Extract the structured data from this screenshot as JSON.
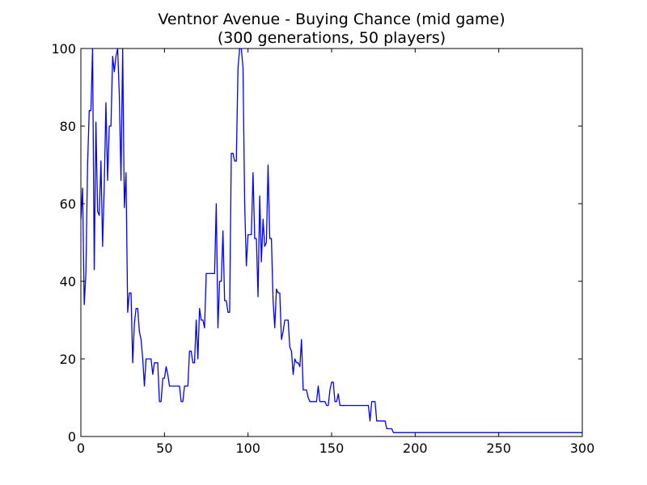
{
  "chart_data": {
    "type": "line",
    "title": "Ventnor Avenue - Buying Chance (mid game)",
    "subtitle": "(300 generations, 50 players)",
    "xlabel": "",
    "ylabel": "",
    "xlim": [
      0,
      300
    ],
    "ylim": [
      0,
      100
    ],
    "xticks": [
      0,
      50,
      100,
      150,
      200,
      250,
      300
    ],
    "yticks": [
      0,
      20,
      40,
      60,
      80,
      100
    ],
    "grid": false,
    "line_color": "#0000ff",
    "series": [
      {
        "points": [
          [
            0,
            56
          ],
          [
            1,
            64
          ],
          [
            2,
            34
          ],
          [
            3,
            42
          ],
          [
            4,
            70
          ],
          [
            5,
            84
          ],
          [
            6,
            84
          ],
          [
            7,
            100
          ],
          [
            8,
            43
          ],
          [
            9,
            81
          ],
          [
            10,
            58
          ],
          [
            11,
            57
          ],
          [
            12,
            71
          ],
          [
            13,
            49
          ],
          [
            14,
            65
          ],
          [
            15,
            86
          ],
          [
            16,
            66
          ],
          [
            17,
            80
          ],
          [
            18,
            80
          ],
          [
            19,
            98
          ],
          [
            20,
            94
          ],
          [
            21,
            98
          ],
          [
            22,
            100
          ],
          [
            23,
            88
          ],
          [
            24,
            66
          ],
          [
            25,
            100
          ],
          [
            26,
            59
          ],
          [
            27,
            68
          ],
          [
            28,
            32
          ],
          [
            29,
            37
          ],
          [
            30,
            37
          ],
          [
            31,
            19
          ],
          [
            32,
            29
          ],
          [
            33,
            33
          ],
          [
            34,
            33
          ],
          [
            35,
            27
          ],
          [
            36,
            25
          ],
          [
            37,
            20
          ],
          [
            38,
            13
          ],
          [
            39,
            20
          ],
          [
            40,
            20
          ],
          [
            41,
            20
          ],
          [
            42,
            20
          ],
          [
            43,
            16
          ],
          [
            44,
            19
          ],
          [
            45,
            19
          ],
          [
            46,
            19
          ],
          [
            47,
            9
          ],
          [
            48,
            9
          ],
          [
            49,
            15
          ],
          [
            50,
            15
          ],
          [
            51,
            18
          ],
          [
            52,
            16
          ],
          [
            53,
            13
          ],
          [
            54,
            13
          ],
          [
            55,
            13
          ],
          [
            56,
            13
          ],
          [
            57,
            13
          ],
          [
            58,
            13
          ],
          [
            59,
            13
          ],
          [
            60,
            9
          ],
          [
            61,
            9
          ],
          [
            62,
            13
          ],
          [
            63,
            13
          ],
          [
            64,
            13
          ],
          [
            65,
            22
          ],
          [
            66,
            22
          ],
          [
            67,
            19
          ],
          [
            68,
            19
          ],
          [
            69,
            30
          ],
          [
            70,
            20
          ],
          [
            71,
            33
          ],
          [
            72,
            30
          ],
          [
            73,
            30
          ],
          [
            74,
            28
          ],
          [
            75,
            42
          ],
          [
            76,
            42
          ],
          [
            77,
            42
          ],
          [
            78,
            42
          ],
          [
            79,
            42
          ],
          [
            80,
            42
          ],
          [
            81,
            60
          ],
          [
            82,
            28
          ],
          [
            83,
            40
          ],
          [
            84,
            40
          ],
          [
            85,
            53
          ],
          [
            86,
            35
          ],
          [
            87,
            35
          ],
          [
            88,
            32
          ],
          [
            89,
            32
          ],
          [
            90,
            73
          ],
          [
            91,
            73
          ],
          [
            92,
            71
          ],
          [
            93,
            71
          ],
          [
            94,
            95
          ],
          [
            95,
            100
          ],
          [
            96,
            100
          ],
          [
            97,
            95
          ],
          [
            98,
            60
          ],
          [
            99,
            44
          ],
          [
            100,
            52
          ],
          [
            101,
            52
          ],
          [
            102,
            52
          ],
          [
            103,
            68
          ],
          [
            104,
            51
          ],
          [
            105,
            51
          ],
          [
            106,
            36
          ],
          [
            107,
            62
          ],
          [
            108,
            45
          ],
          [
            109,
            56
          ],
          [
            110,
            49
          ],
          [
            111,
            50
          ],
          [
            112,
            70
          ],
          [
            113,
            51
          ],
          [
            114,
            51
          ],
          [
            115,
            35
          ],
          [
            116,
            28
          ],
          [
            117,
            38
          ],
          [
            118,
            37
          ],
          [
            119,
            37
          ],
          [
            120,
            25
          ],
          [
            121,
            27
          ],
          [
            122,
            30
          ],
          [
            123,
            30
          ],
          [
            124,
            30
          ],
          [
            125,
            23
          ],
          [
            126,
            22
          ],
          [
            127,
            16
          ],
          [
            128,
            20
          ],
          [
            129,
            19
          ],
          [
            130,
            19
          ],
          [
            131,
            18
          ],
          [
            132,
            25
          ],
          [
            133,
            12
          ],
          [
            134,
            12
          ],
          [
            135,
            12
          ],
          [
            136,
            10
          ],
          [
            137,
            9
          ],
          [
            138,
            9
          ],
          [
            139,
            9
          ],
          [
            140,
            9
          ],
          [
            141,
            9
          ],
          [
            142,
            13
          ],
          [
            143,
            9
          ],
          [
            144,
            9
          ],
          [
            145,
            9
          ],
          [
            146,
            9
          ],
          [
            147,
            8
          ],
          [
            148,
            8
          ],
          [
            149,
            12
          ],
          [
            150,
            14
          ],
          [
            151,
            14
          ],
          [
            152,
            9
          ],
          [
            153,
            9
          ],
          [
            154,
            11
          ],
          [
            155,
            8
          ],
          [
            156,
            8
          ],
          [
            157,
            8
          ],
          [
            158,
            8
          ],
          [
            159,
            8
          ],
          [
            160,
            8
          ],
          [
            165,
            8
          ],
          [
            170,
            8
          ],
          [
            172,
            8
          ],
          [
            173,
            4
          ],
          [
            174,
            9
          ],
          [
            175,
            9
          ],
          [
            176,
            9
          ],
          [
            177,
            4
          ],
          [
            178,
            4
          ],
          [
            179,
            4
          ],
          [
            180,
            4
          ],
          [
            182,
            4
          ],
          [
            183,
            2
          ],
          [
            184,
            2
          ],
          [
            185,
            2
          ],
          [
            186,
            2
          ],
          [
            187,
            1
          ],
          [
            188,
            1
          ],
          [
            300,
            1
          ]
        ]
      }
    ]
  }
}
